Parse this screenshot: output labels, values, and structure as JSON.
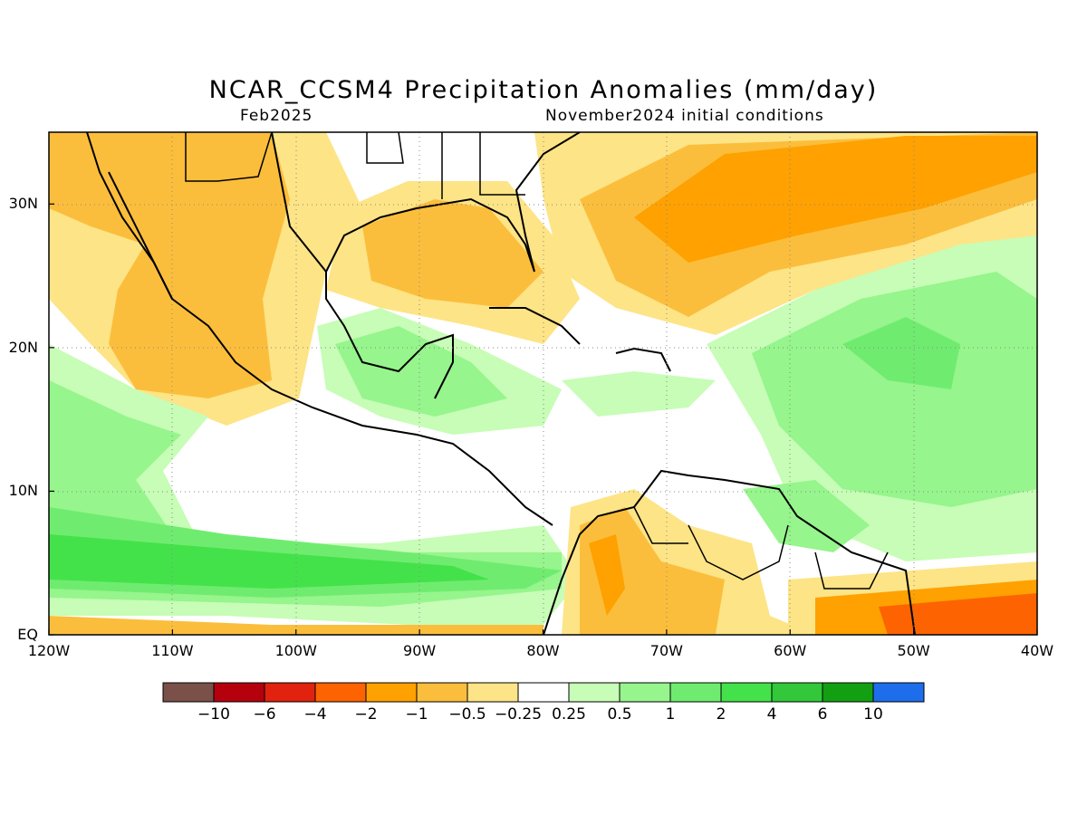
{
  "title": "NCAR_CCSM4 Precipitation Anomalies (mm/day)",
  "subtitle_left": "Feb2025",
  "subtitle_right": "November2024 initial conditions",
  "map": {
    "lon_range": [
      -120,
      -40
    ],
    "lat_range": [
      0,
      35
    ],
    "x_ticks": [
      "120W",
      "110W",
      "100W",
      "90W",
      "80W",
      "70W",
      "60W",
      "50W",
      "40W"
    ],
    "y_ticks": [
      "EQ",
      "10N",
      "20N",
      "30N"
    ],
    "grid": "dotted"
  },
  "legend": {
    "labels": [
      "-10",
      "-6",
      "-4",
      "-2",
      "-1",
      "-0.5",
      "-0.25",
      "0.25",
      "0.5",
      "1",
      "2",
      "4",
      "6",
      "10"
    ],
    "colors": [
      "#7a5049",
      "#b5000e",
      "#e1220e",
      "#fd6301",
      "#fea101",
      "#fbbe3c",
      "#fde486",
      "#ffffff",
      "#c7fdb6",
      "#96f58c",
      "#6fec6f",
      "#44e24a",
      "#32c83a",
      "#12a012",
      "#1e6eeb"
    ]
  }
}
